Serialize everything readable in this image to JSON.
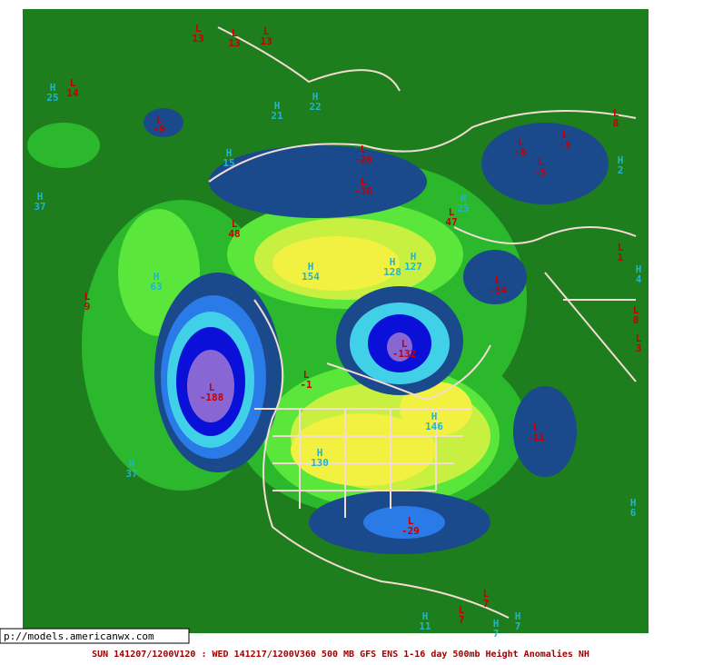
{
  "labels": [
    {
      "letter": "L",
      "value": 13
    },
    {
      "letter": "L",
      "value": 13
    },
    {
      "letter": "L",
      "value": 13
    },
    {
      "letter": "H",
      "value": 25
    },
    {
      "letter": "L",
      "value": 14
    },
    {
      "letter": "L",
      "value": -9
    },
    {
      "letter": "H",
      "value": 21
    },
    {
      "letter": "H",
      "value": 22
    },
    {
      "letter": "H",
      "value": 15
    },
    {
      "letter": "L",
      "value": -26
    },
    {
      "letter": "L",
      "value": -36
    },
    {
      "letter": "H",
      "value": 2
    },
    {
      "letter": "L",
      "value": -8
    },
    {
      "letter": "L",
      "value": -5
    },
    {
      "letter": "L",
      "value": -5
    },
    {
      "letter": "L",
      "value": 8
    },
    {
      "letter": "H",
      "value": 37
    },
    {
      "letter": "L",
      "value": 48
    },
    {
      "letter": "L",
      "value": 47
    },
    {
      "letter": "H",
      "value": 25
    },
    {
      "letter": "H",
      "value": 154
    },
    {
      "letter": "H",
      "value": 128
    },
    {
      "letter": "H",
      "value": 127
    },
    {
      "letter": "H",
      "value": 63
    },
    {
      "letter": "L",
      "value": 9
    },
    {
      "letter": "L",
      "value": -34
    },
    {
      "letter": "L",
      "value": 1
    },
    {
      "letter": "H",
      "value": 4
    },
    {
      "letter": "L",
      "value": -132
    },
    {
      "letter": "L",
      "value": 8
    },
    {
      "letter": "L",
      "value": 3
    },
    {
      "letter": "L",
      "value": -188
    },
    {
      "letter": "L",
      "value": -1
    },
    {
      "letter": "H",
      "value": 146
    },
    {
      "letter": "L",
      "value": -11
    },
    {
      "letter": "H",
      "value": 130
    },
    {
      "letter": "H",
      "value": 37
    },
    {
      "letter": "L",
      "value": -29
    },
    {
      "letter": "H",
      "value": 6
    },
    {
      "letter": "L",
      "value": 7
    },
    {
      "letter": "L",
      "value": 7
    },
    {
      "letter": "H",
      "value": 11
    },
    {
      "letter": "H",
      "value": 7
    },
    {
      "letter": "H",
      "value": 7
    }
  ],
  "url": "p://models.americanwx.com",
  "caption": "SUN 141207/1200V120 : WED 141217/1200V360  500 MB GFS ENS 1-16 day 500mb Height Anomalies NH"
}
